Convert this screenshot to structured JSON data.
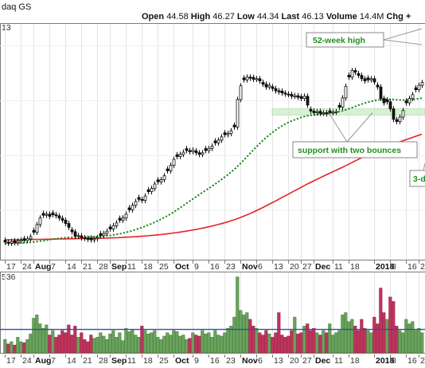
{
  "header": {
    "symbol_label": "daq GS",
    "open_label": "Open",
    "open_value": "44.58",
    "high_label": "High",
    "high_value": "46.27",
    "low_label": "Low",
    "low_value": "44.34",
    "last_label": "Last",
    "last_value": "46.13",
    "volume_label": "Volume",
    "volume_value": "14.4M",
    "chg_label": "Chg +",
    "price_axis_fragment": "13",
    "volume_axis_fragment": "536"
  },
  "chart_data": {
    "type": "candlestick_with_volume",
    "x_tick_labels": [
      {
        "label": "17",
        "index": 0,
        "bold": false
      },
      {
        "label": "24",
        "index": 5,
        "bold": false
      },
      {
        "label": "Aug",
        "index": 9,
        "bold": true
      },
      {
        "label": "7",
        "index": 14,
        "bold": false
      },
      {
        "label": "14",
        "index": 19,
        "bold": false
      },
      {
        "label": "21",
        "index": 24,
        "bold": false
      },
      {
        "label": "28",
        "index": 29,
        "bold": false
      },
      {
        "label": "Sep",
        "index": 33,
        "bold": true
      },
      {
        "label": "11",
        "index": 38,
        "bold": false
      },
      {
        "label": "18",
        "index": 43,
        "bold": false
      },
      {
        "label": "25",
        "index": 48,
        "bold": false
      },
      {
        "label": "Oct",
        "index": 53,
        "bold": true
      },
      {
        "label": "9",
        "index": 59,
        "bold": false
      },
      {
        "label": "16",
        "index": 64,
        "bold": false
      },
      {
        "label": "23",
        "index": 69,
        "bold": false
      },
      {
        "label": "Nov",
        "index": 74,
        "bold": true
      },
      {
        "label": "6",
        "index": 79,
        "bold": false
      },
      {
        "label": "13",
        "index": 84,
        "bold": false
      },
      {
        "label": "20",
        "index": 89,
        "bold": false
      },
      {
        "label": "27",
        "index": 93,
        "bold": false
      },
      {
        "label": "Dec",
        "index": 97,
        "bold": true
      },
      {
        "label": "11",
        "index": 103,
        "bold": false
      },
      {
        "label": "18",
        "index": 108,
        "bold": false
      },
      {
        "label": "2018",
        "index": 116,
        "bold": true
      },
      {
        "label": "8",
        "index": 121,
        "bold": false
      },
      {
        "label": "16",
        "index": 126,
        "bold": false
      },
      {
        "label": "2",
        "index": 130,
        "bold": false
      }
    ],
    "price_closes": [
      44.2,
      44.0,
      44.3,
      44.1,
      44.4,
      44.6,
      44.5,
      44.8,
      45.2,
      46.0,
      47.4,
      48.6,
      49.1,
      49.3,
      48.9,
      49.2,
      49.0,
      48.6,
      48.2,
      47.6,
      46.9,
      46.1,
      45.3,
      45.4,
      45.0,
      44.9,
      44.7,
      44.6,
      44.8,
      45.0,
      45.4,
      45.8,
      46.2,
      46.6,
      47.2,
      47.7,
      48.2,
      48.6,
      49.3,
      50.1,
      50.9,
      51.6,
      52.0,
      51.8,
      52.6,
      53.4,
      54.0,
      54.8,
      55.2,
      55.6,
      56.3,
      57.2,
      58.2,
      59.3,
      59.8,
      60.2,
      60.6,
      60.9,
      60.7,
      61.0,
      60.5,
      60.2,
      60.5,
      60.9,
      61.3,
      61.7,
      62.3,
      62.8,
      63.4,
      63.8,
      64.0,
      64.5,
      65.2,
      70.2,
      72.7,
      73.8,
      74.3,
      74.1,
      73.9,
      74.0,
      73.6,
      73.0,
      72.5,
      72.8,
      72.2,
      71.8,
      71.6,
      71.4,
      71.2,
      71.1,
      70.8,
      70.9,
      70.6,
      70.4,
      70.8,
      69.2,
      68.1,
      67.8,
      68.0,
      67.7,
      67.8,
      67.6,
      67.8,
      67.9,
      68.0,
      68.8,
      70.5,
      72.6,
      74.3,
      75.5,
      75.2,
      74.6,
      74.0,
      73.6,
      73.8,
      74.0,
      73.4,
      72.5,
      70.4,
      69.6,
      69.8,
      68.5,
      66.6,
      66.2,
      67.0,
      68.2,
      69.6,
      70.4,
      71.1,
      72.0,
      72.8,
      73.3
    ],
    "ma50": [
      43.95,
      43.96,
      43.98,
      44.0,
      44.02,
      44.05,
      44.08,
      44.12,
      44.17,
      44.23,
      44.3,
      44.38,
      44.46,
      44.55,
      44.63,
      44.72,
      44.8,
      44.87,
      44.94,
      45.0,
      45.05,
      45.08,
      45.1,
      45.11,
      45.12,
      45.13,
      45.14,
      45.15,
      45.17,
      45.2,
      45.24,
      45.29,
      45.35,
      45.42,
      45.5,
      45.6,
      45.71,
      45.83,
      45.97,
      46.12,
      46.29,
      46.47,
      46.66,
      46.86,
      47.07,
      47.3,
      47.54,
      47.8,
      48.07,
      48.35,
      48.65,
      48.97,
      49.31,
      49.67,
      50.05,
      50.44,
      50.84,
      51.24,
      51.64,
      52.04,
      52.44,
      52.83,
      53.21,
      53.59,
      53.97,
      54.36,
      54.76,
      55.17,
      55.59,
      56.02,
      56.47,
      56.93,
      57.41,
      57.95,
      58.53,
      59.13,
      59.74,
      60.35,
      60.96,
      61.56,
      62.14,
      62.7,
      63.22,
      63.72,
      64.18,
      64.61,
      65.0,
      65.36,
      65.69,
      65.99,
      66.26,
      66.5,
      66.72,
      66.92,
      67.11,
      67.24,
      67.33,
      67.4,
      67.47,
      67.53,
      67.59,
      67.65,
      67.72,
      67.8,
      67.89,
      68.0,
      68.14,
      68.31,
      68.5,
      68.72,
      68.94,
      69.15,
      69.35,
      69.53,
      69.7,
      69.86,
      70.0,
      70.11,
      70.18,
      70.22,
      70.25,
      70.25,
      70.21,
      70.16,
      70.12,
      70.11,
      70.12,
      70.15,
      70.2,
      70.27,
      70.36,
      70.46
    ],
    "ma200": [
      44.6,
      44.61,
      44.62,
      44.63,
      44.64,
      44.65,
      44.66,
      44.67,
      44.68,
      44.69,
      44.7,
      44.71,
      44.72,
      44.73,
      44.74,
      44.75,
      44.76,
      44.77,
      44.78,
      44.79,
      44.8,
      44.81,
      44.82,
      44.83,
      44.84,
      44.85,
      44.86,
      44.87,
      44.88,
      44.89,
      44.9,
      44.92,
      44.94,
      44.96,
      44.98,
      45.0,
      45.03,
      45.06,
      45.09,
      45.12,
      45.15,
      45.19,
      45.23,
      45.27,
      45.31,
      45.36,
      45.41,
      45.46,
      45.52,
      45.58,
      45.64,
      45.71,
      45.78,
      45.86,
      45.94,
      46.02,
      46.11,
      46.2,
      46.3,
      46.4,
      46.51,
      46.62,
      46.74,
      46.86,
      46.99,
      47.12,
      47.26,
      47.41,
      47.56,
      47.72,
      47.89,
      48.07,
      48.26,
      48.46,
      48.68,
      48.91,
      49.15,
      49.4,
      49.66,
      49.93,
      50.21,
      50.5,
      50.79,
      51.09,
      51.39,
      51.69,
      52.0,
      52.31,
      52.62,
      52.93,
      53.24,
      53.55,
      53.86,
      54.17,
      54.48,
      54.78,
      55.07,
      55.36,
      55.64,
      55.92,
      56.2,
      56.48,
      56.75,
      57.02,
      57.29,
      57.56,
      57.84,
      58.12,
      58.41,
      58.7,
      58.99,
      59.28,
      59.57,
      59.85,
      60.13,
      60.4,
      60.67,
      60.93,
      61.18,
      61.42,
      61.65,
      61.87,
      62.08,
      62.28,
      62.48,
      62.68,
      62.88,
      63.08,
      63.28,
      63.48,
      63.68,
      63.88
    ],
    "volume": [
      0.6,
      0.4,
      0.5,
      0.35,
      0.7,
      0.5,
      0.45,
      0.6,
      0.85,
      1.55,
      1.7,
      1.3,
      1.1,
      1.25,
      0.8,
      1.0,
      0.7,
      0.8,
      1.0,
      0.9,
      1.25,
      0.8,
      1.2,
      0.7,
      0.9,
      0.6,
      0.5,
      0.8,
      0.65,
      0.7,
      0.9,
      0.75,
      0.6,
      0.85,
      1.0,
      0.7,
      0.9,
      0.55,
      1.1,
      0.95,
      1.05,
      0.8,
      0.7,
      1.2,
      1.0,
      0.85,
      0.9,
      1.0,
      0.7,
      0.6,
      0.75,
      0.9,
      0.8,
      1.0,
      0.95,
      0.75,
      0.8,
      0.6,
      0.65,
      0.9,
      0.8,
      0.75,
      1.0,
      0.85,
      0.9,
      0.7,
      1.0,
      0.8,
      0.75,
      0.9,
      1.1,
      1.2,
      1.6,
      3.4,
      1.9,
      1.7,
      1.8,
      1.5,
      1.2,
      1.1,
      0.9,
      0.8,
      1.0,
      0.85,
      0.7,
      0.9,
      1.8,
      0.8,
      0.7,
      0.75,
      1.0,
      1.6,
      0.85,
      0.9,
      1.2,
      1.3,
      1.0,
      1.1,
      0.9,
      0.8,
      1.0,
      0.9,
      1.3,
      0.8,
      0.9,
      1.0,
      1.7,
      1.8,
      1.4,
      1.5,
      1.2,
      1.0,
      1.5,
      1.1,
      1.0,
      0.9,
      1.6,
      1.3,
      2.9,
      1.8,
      1.5,
      2.5,
      2.3,
      1.2,
      1.0,
      0.9,
      1.5,
      1.3,
      1.4,
      1.0,
      1.1,
      0.9
    ],
    "volume_avg": 1.05,
    "annotations": [
      {
        "text": "52-week high",
        "index": 111
      },
      {
        "text": "support with two bounces",
        "index": 104
      },
      {
        "text": "3-d",
        "index": 128
      }
    ],
    "support_zone": {
      "low": 67.4,
      "high": 68.5
    },
    "grid": true
  }
}
